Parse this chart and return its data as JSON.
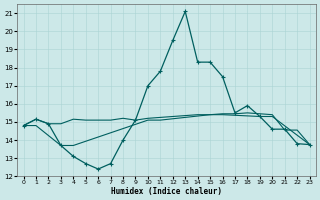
{
  "xlabel": "Humidex (Indice chaleur)",
  "xlim": [
    -0.5,
    23.5
  ],
  "ylim": [
    12,
    21.5
  ],
  "yticks": [
    12,
    13,
    14,
    15,
    16,
    17,
    18,
    19,
    20,
    21
  ],
  "xticks": [
    0,
    1,
    2,
    3,
    4,
    5,
    6,
    7,
    8,
    9,
    10,
    11,
    12,
    13,
    14,
    15,
    16,
    17,
    18,
    19,
    20,
    21,
    22,
    23
  ],
  "bg_color": "#cce8e8",
  "line_color": "#005f5f",
  "line1_y": [
    14.8,
    15.15,
    14.9,
    14.9,
    15.15,
    15.1,
    15.1,
    15.1,
    15.2,
    15.1,
    15.2,
    15.25,
    15.3,
    15.35,
    15.4,
    15.4,
    15.45,
    15.45,
    15.5,
    15.45,
    15.4,
    14.55,
    14.55,
    13.75
  ],
  "line2_y": [
    14.8,
    15.15,
    14.9,
    13.7,
    13.1,
    12.7,
    12.4,
    12.7,
    14.0,
    15.1,
    17.0,
    17.8,
    19.5,
    21.1,
    18.3,
    18.3,
    17.5,
    15.5,
    15.9,
    15.3,
    14.6,
    14.6,
    13.8,
    13.75
  ],
  "line3_x": [
    0,
    1,
    3,
    4,
    10,
    11,
    15,
    16,
    19,
    20,
    23
  ],
  "line3_y": [
    14.8,
    14.8,
    13.7,
    13.7,
    15.1,
    15.1,
    15.4,
    15.4,
    15.3,
    15.3,
    13.75
  ]
}
